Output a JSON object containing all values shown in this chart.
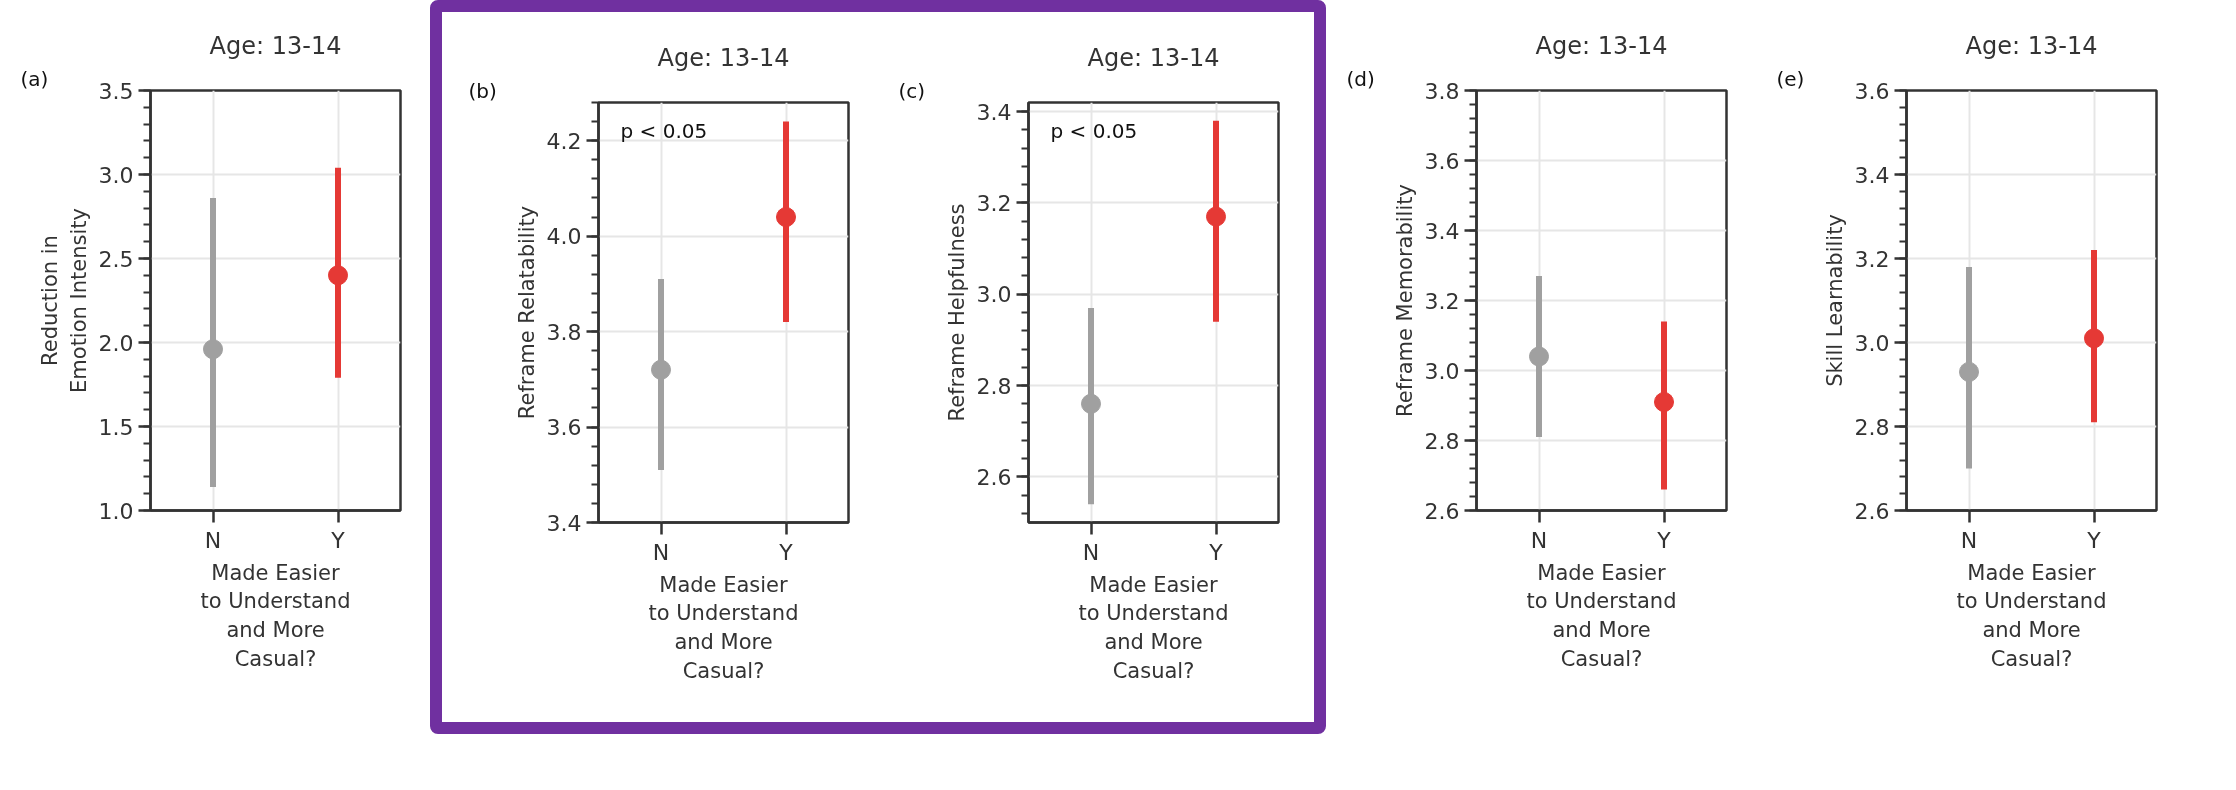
{
  "chart_data": [
    {
      "type": "scatter",
      "title": "Age: 13-14",
      "xlabel": "Made Easier\nto Understand\nand More\nCasual?",
      "ylabel": "Reduction in\nEmotion Intensity",
      "annotations": [
        "(a)"
      ],
      "categories": [
        "N",
        "Y"
      ],
      "values": [
        1.96,
        2.4
      ],
      "errors": [
        [
          1.14,
          2.86
        ],
        [
          1.79,
          3.04
        ]
      ],
      "colors": [
        "#a0a0a0",
        "#e53935"
      ],
      "ylim": [
        1.0,
        3.5
      ],
      "yticks": [
        {
          "value": 1.0,
          "label": "1.0"
        },
        1.5,
        {
          "value": 2.0,
          "label": "2.0"
        },
        2.5,
        {
          "value": 3.0,
          "label": "3.0"
        },
        3.5
      ],
      "grid": true,
      "marker": "circle"
    },
    {
      "type": "scatter",
      "title": "Age: 13-14",
      "xlabel": "Made Easier\nto Understand\nand More\nCasual?",
      "ylabel": "Reframe Relatability",
      "annotations": [
        "(b)",
        "p < 0.05"
      ],
      "categories": [
        "N",
        "Y"
      ],
      "values": [
        3.72,
        4.04
      ],
      "errors": [
        [
          3.51,
          3.91
        ],
        [
          3.82,
          4.24
        ]
      ],
      "colors": [
        "#a0a0a0",
        "#e53935"
      ],
      "ylim": [
        3.4,
        4.28
      ],
      "yticks": [
        3.4,
        3.6,
        3.8,
        {
          "value": 4.0,
          "label": "4.0"
        },
        4.2
      ],
      "grid": true,
      "marker": "circle"
    },
    {
      "type": "scatter",
      "title": "Age: 13-14",
      "xlabel": "Made Easier\nto Understand\nand More\nCasual?",
      "ylabel": "Reframe Helpfulness",
      "annotations": [
        "(c)",
        "p < 0.05"
      ],
      "categories": [
        "N",
        "Y"
      ],
      "values": [
        2.76,
        3.17
      ],
      "errors": [
        [
          2.54,
          2.97
        ],
        [
          2.94,
          3.38
        ]
      ],
      "colors": [
        "#a0a0a0",
        "#e53935"
      ],
      "ylim": [
        2.5,
        3.42
      ],
      "yticks": [
        2.6,
        2.8,
        {
          "value": 3.0,
          "label": "3.0"
        },
        3.2,
        3.4
      ],
      "grid": true,
      "marker": "circle"
    },
    {
      "type": "scatter",
      "title": "Age: 13-14",
      "xlabel": "Made Easier\nto Understand\nand More\nCasual?",
      "ylabel": "Reframe Memorability",
      "annotations": [
        "(d)"
      ],
      "categories": [
        "N",
        "Y"
      ],
      "values": [
        3.04,
        2.91
      ],
      "errors": [
        [
          2.81,
          3.27
        ],
        [
          2.66,
          3.14
        ]
      ],
      "colors": [
        "#a0a0a0",
        "#e53935"
      ],
      "ylim": [
        2.6,
        3.8
      ],
      "yticks": [
        2.6,
        2.8,
        {
          "value": 3.0,
          "label": "3.0"
        },
        3.2,
        3.4,
        3.6,
        3.8
      ],
      "grid": true,
      "marker": "circle"
    },
    {
      "type": "scatter",
      "title": "Age: 13-14",
      "xlabel": "Made Easier\nto Understand\nand More\nCasual?",
      "ylabel": "Skill Learnability",
      "annotations": [
        "(e)"
      ],
      "categories": [
        "N",
        "Y"
      ],
      "values": [
        2.93,
        3.01
      ],
      "errors": [
        [
          2.7,
          3.18
        ],
        [
          2.81,
          3.22
        ]
      ],
      "colors": [
        "#a0a0a0",
        "#e53935"
      ],
      "ylim": [
        2.6,
        3.6
      ],
      "yticks": [
        2.6,
        2.8,
        {
          "value": 3.0,
          "label": "3.0"
        },
        3.2,
        3.4,
        3.6
      ],
      "grid": true,
      "marker": "circle"
    }
  ]
}
